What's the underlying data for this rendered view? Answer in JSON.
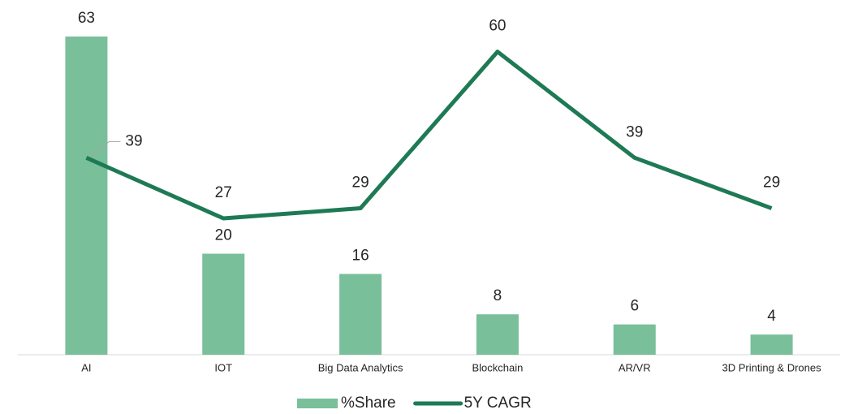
{
  "chart_data": {
    "type": "combo",
    "categories": [
      "AI",
      "IOT",
      "Big Data Analytics",
      "Blockchain",
      "AR/VR",
      "3D Printing & Drones"
    ],
    "series": [
      {
        "name": "%Share",
        "type": "bar",
        "color": "#78bf9a",
        "values": [
          63,
          20,
          16,
          8,
          6,
          4
        ]
      },
      {
        "name": "5Y CAGR",
        "type": "line",
        "color": "#1e7a55",
        "values": [
          39,
          27,
          29,
          60,
          39,
          29
        ]
      }
    ],
    "legend": "bottom"
  }
}
